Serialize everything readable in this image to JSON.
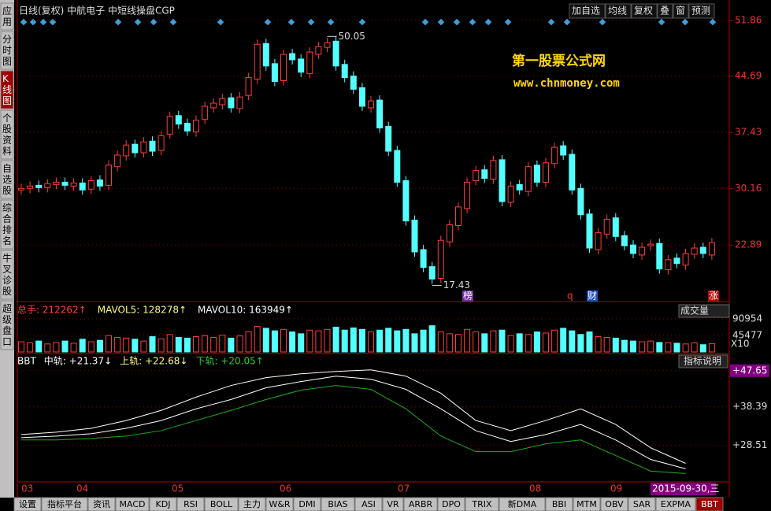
{
  "header": {
    "title": "日线(复权)  中航电子  中短线操盘CGP",
    "buttons": [
      "加自选",
      "均线",
      "复权",
      "叠",
      "窗",
      "预测"
    ]
  },
  "sidebar": [
    "应用",
    "分时图",
    "K线图",
    "个股资料",
    "自选股",
    "综合排名",
    "牛叉诊股",
    "超级盘口"
  ],
  "watermark": {
    "name": "第一股票公式网",
    "url": "www.chnmoney.com"
  },
  "price_chart": {
    "ylim": [
      15.9,
      53.5
    ],
    "yticks": [
      51.86,
      44.69,
      37.43,
      30.16,
      22.89
    ],
    "high_label": "50.05",
    "low_label": "17.43",
    "open": [
      30.0,
      30.2,
      30.6,
      30.3,
      30.7,
      31.0,
      30.5,
      30.9,
      30.1,
      31.3,
      30.6,
      33.0,
      34.4,
      35.9,
      34.8,
      36.3,
      35.1,
      37.2,
      39.6,
      38.6,
      37.5,
      39.1,
      40.6,
      41.0,
      41.9,
      40.5,
      42.2,
      44.3,
      48.9,
      46.3,
      44.1,
      47.6,
      46.9,
      45.0,
      47.5,
      48.4,
      49.2,
      46.2,
      44.7,
      43.2,
      40.6,
      41.6,
      38.2,
      35.1,
      31.2,
      26.1,
      22.3,
      20.1,
      18.6,
      23.3,
      25.4,
      27.6,
      31.2,
      32.6,
      31.4,
      33.9,
      28.4,
      30.7,
      29.8,
      33.2,
      31.0,
      33.4,
      35.7,
      34.6,
      30.2,
      26.9,
      22.3,
      24.3,
      26.4,
      24.1,
      22.9,
      21.6,
      22.8,
      23.1,
      19.7,
      21.2,
      20.3,
      21.7,
      22.6,
      21.6
    ],
    "close": [
      30.2,
      30.5,
      30.3,
      30.8,
      31.0,
      30.6,
      30.9,
      30.0,
      31.2,
      30.5,
      33.2,
      34.5,
      35.8,
      34.8,
      36.2,
      35.0,
      37.0,
      39.5,
      38.5,
      37.6,
      39.0,
      40.8,
      41.2,
      41.8,
      40.6,
      42.0,
      44.5,
      48.8,
      46.0,
      44.0,
      47.5,
      46.8,
      45.2,
      47.8,
      48.5,
      49.0,
      46.0,
      44.5,
      43.0,
      40.8,
      41.5,
      38.0,
      35.0,
      31.0,
      26.0,
      22.0,
      20.0,
      18.5,
      23.5,
      25.5,
      27.8,
      31.0,
      32.5,
      31.5,
      33.8,
      28.5,
      30.5,
      30.0,
      33.0,
      31.0,
      33.5,
      35.5,
      34.5,
      30.0,
      26.8,
      22.5,
      24.5,
      26.2,
      24.0,
      22.8,
      21.8,
      22.6,
      23.0,
      19.8,
      21.0,
      20.5,
      21.8,
      22.5,
      21.8,
      23.2
    ],
    "markers": [
      "榜",
      "q",
      "财",
      "涨"
    ]
  },
  "volume_panel": {
    "legend": [
      "总手: 212262↑",
      "MAVOL5: 128278↑",
      "MAVOL10: 163949↑"
    ],
    "selector": "成交量",
    "ylim": [
      0,
      134000
    ],
    "yticks": [
      90954,
      45477
    ],
    "unit": "X10",
    "values": [
      28000,
      25000,
      30000,
      22000,
      26000,
      30000,
      24000,
      35000,
      28000,
      32000,
      45000,
      40000,
      38000,
      35000,
      30000,
      42000,
      36000,
      48000,
      40000,
      38000,
      42000,
      45000,
      40000,
      46000,
      38000,
      44000,
      55000,
      70000,
      65000,
      58000,
      62000,
      55000,
      50000,
      60000,
      58000,
      62000,
      68000,
      60000,
      66000,
      62000,
      55000,
      60000,
      65000,
      58000,
      62000,
      50000,
      60000,
      72000,
      55000,
      50000,
      48000,
      62000,
      55000,
      50000,
      58000,
      60000,
      45000,
      50000,
      48000,
      55000,
      52000,
      60000,
      65000,
      58000,
      48000,
      55000,
      42000,
      40000,
      38000,
      32000,
      30000,
      28000,
      30000,
      26000,
      25000,
      24000,
      22000,
      25000,
      20000,
      23000
    ]
  },
  "bbt_panel": {
    "legend": [
      "BBT",
      "中轨: +21.37↓",
      "上轨: +22.68↓",
      "下轨: +20.05↑"
    ],
    "help": "指标说明",
    "ylim": [
      19.5,
      51.85
    ],
    "yticks": [
      {
        "value": 47.65,
        "label": "+47.65"
      },
      {
        "value": 38.39,
        "label": "+38.39"
      },
      {
        "value": 28.51,
        "label": "+28.51"
      }
    ],
    "mid": [
      30.45,
      30.85,
      31.45,
      32.85,
      34.85,
      37.85,
      40.25,
      43.25,
      44.85,
      46.25,
      45.45,
      42.85,
      37.85,
      32.25,
      29.45,
      31.25,
      33.85,
      29.85,
      24.85,
      22.45
    ],
    "upper": [
      31.25,
      31.85,
      32.85,
      34.85,
      37.45,
      40.85,
      43.85,
      45.85,
      46.85,
      47.45,
      47.85,
      46.25,
      41.85,
      34.85,
      32.25,
      34.85,
      37.85,
      33.85,
      27.85,
      23.85
    ],
    "lower": [
      29.85,
      29.85,
      30.25,
      30.85,
      32.25,
      34.85,
      37.45,
      40.25,
      42.65,
      43.85,
      42.85,
      37.85,
      30.85,
      26.85,
      26.85,
      28.85,
      29.85,
      25.85,
      21.85,
      21.25
    ]
  },
  "months": [
    "03",
    "04",
    "05",
    "06",
    "07",
    "08",
    "09"
  ],
  "cursor_date": "2015-09-30,三",
  "tabs": [
    "设置",
    "指标平台",
    "资讯",
    "MACD",
    "KDJ",
    "RSI",
    "BOLL",
    "主力",
    "W&R",
    "DMI",
    "BIAS",
    "ASI",
    "VR",
    "ARBR",
    "DPO",
    "TRIX",
    "新DMA",
    "BBI",
    "MTM",
    "OBV",
    "SAR",
    "EXPMA",
    "BBT"
  ]
}
